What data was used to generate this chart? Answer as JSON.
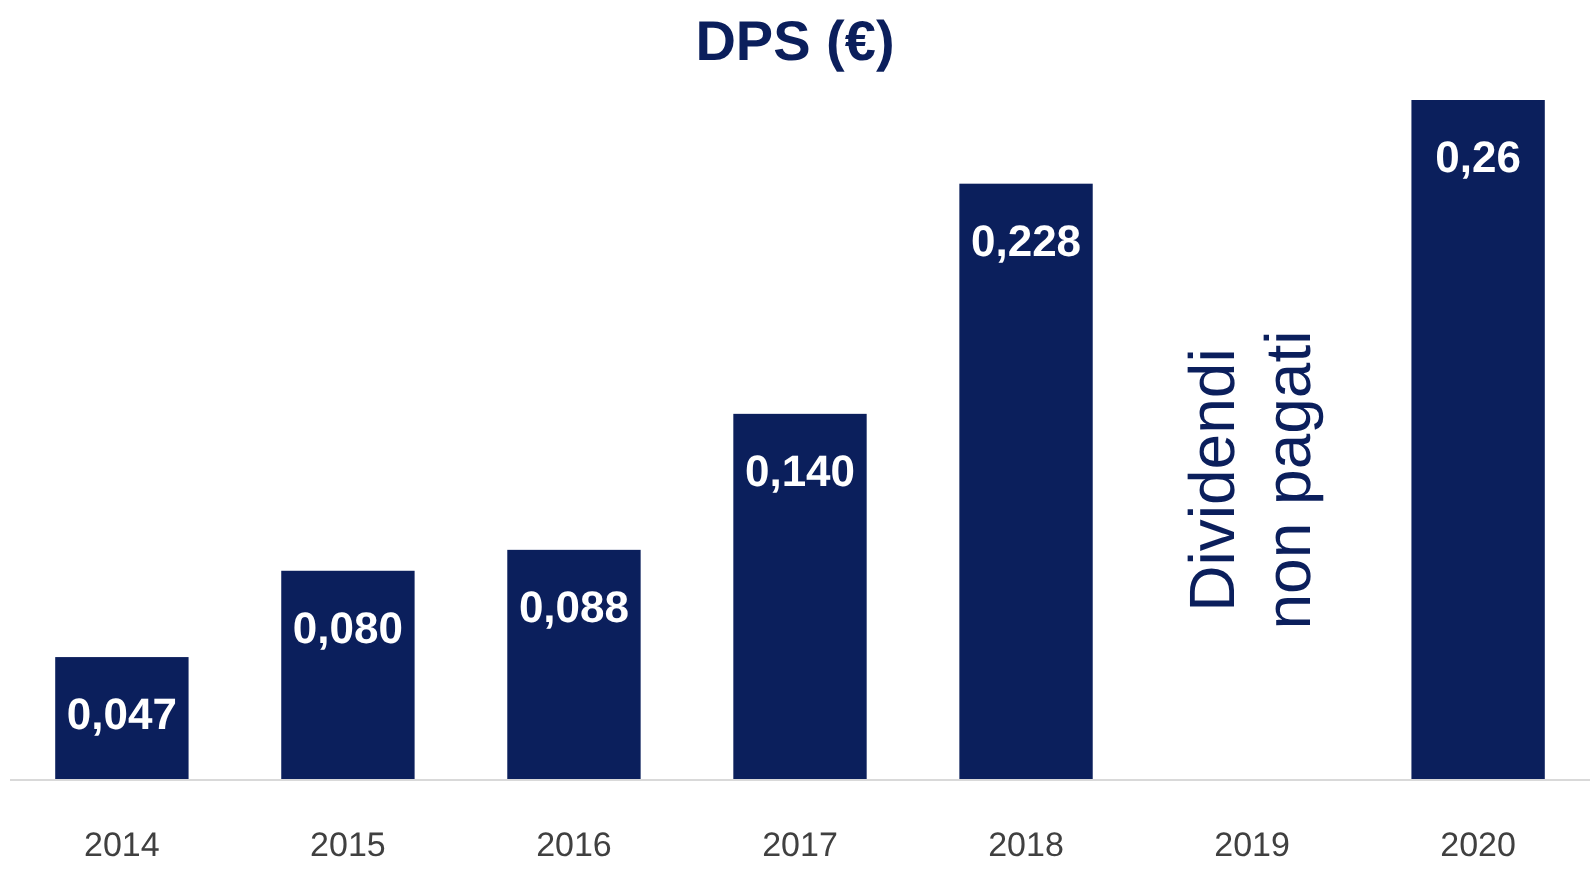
{
  "chart_data": {
    "type": "bar",
    "title": "DPS (€)",
    "categories": [
      "2014",
      "2015",
      "2016",
      "2017",
      "2018",
      "2019",
      "2020"
    ],
    "values": [
      0.047,
      0.08,
      0.088,
      0.14,
      0.228,
      null,
      0.26
    ],
    "value_labels": [
      "0,047",
      "0,080",
      "0,088",
      "0,140",
      "0,228",
      null,
      "0,26"
    ],
    "color": "#0b1f5c",
    "annotations": [
      "Dividendi\nnon pagati"
    ]
  }
}
